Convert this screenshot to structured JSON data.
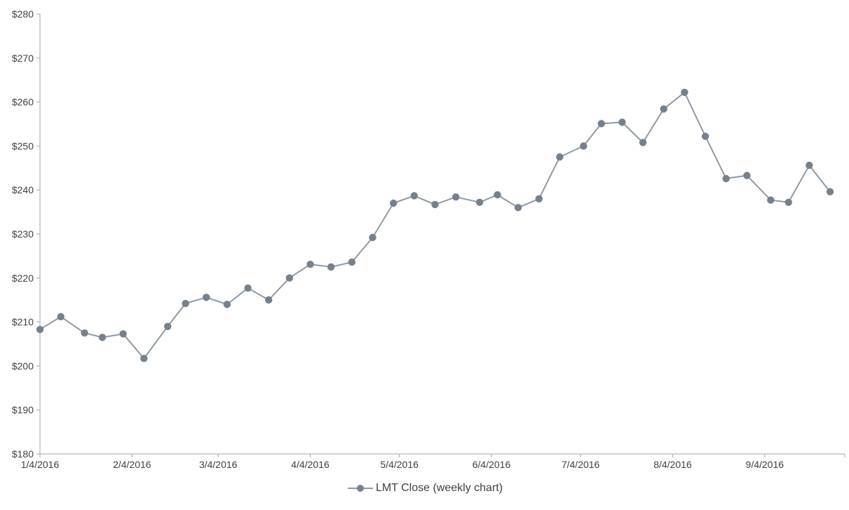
{
  "chart_data": {
    "type": "line",
    "title": "",
    "xlabel": "",
    "ylabel": "",
    "ylim": [
      180,
      280
    ],
    "y_tick_step": 10,
    "y_tick_prefix": "$",
    "grid": false,
    "legend_position": "bottom",
    "x_tick_labels": [
      "1/4/2016",
      "2/4/2016",
      "3/4/2016",
      "4/4/2016",
      "5/4/2016",
      "6/4/2016",
      "7/4/2016",
      "8/4/2016",
      "9/4/2016"
    ],
    "series": [
      {
        "name": "LMT Close (weekly chart)",
        "x": [
          "1/4/2016",
          "1/11/2016",
          "1/19/2016",
          "1/25/2016",
          "2/1/2016",
          "2/8/2016",
          "2/16/2016",
          "2/22/2016",
          "2/29/2016",
          "3/7/2016",
          "3/14/2016",
          "3/21/2016",
          "3/28/2016",
          "4/4/2016",
          "4/11/2016",
          "4/18/2016",
          "4/25/2016",
          "5/2/2016",
          "5/9/2016",
          "5/16/2016",
          "5/23/2016",
          "5/31/2016",
          "6/6/2016",
          "6/13/2016",
          "6/20/2016",
          "6/27/2016",
          "7/5/2016",
          "7/11/2016",
          "7/18/2016",
          "7/25/2016",
          "8/1/2016",
          "8/8/2016",
          "8/15/2016",
          "8/22/2016",
          "8/29/2016",
          "9/6/2016",
          "9/12/2016",
          "9/19/2016",
          "9/26/2016"
        ],
        "values": [
          208.3,
          211.2,
          207.5,
          206.5,
          207.3,
          201.7,
          209.0,
          214.2,
          215.6,
          214.0,
          217.7,
          215.0,
          220.0,
          223.1,
          222.5,
          223.6,
          229.2,
          237.0,
          238.7,
          236.7,
          238.4,
          237.2,
          238.9,
          236.0,
          238.0,
          247.5,
          250.0,
          255.1,
          255.4,
          250.8,
          258.4,
          262.2,
          252.2,
          242.6,
          243.3,
          237.7,
          237.2,
          245.6,
          239.6
        ]
      }
    ],
    "colors": {
      "line": "#8e99a5",
      "marker": "#76818e",
      "axis": "#a6a6a6",
      "text": "#404040"
    }
  },
  "legend": {
    "label": "LMT Close (weekly chart)"
  }
}
